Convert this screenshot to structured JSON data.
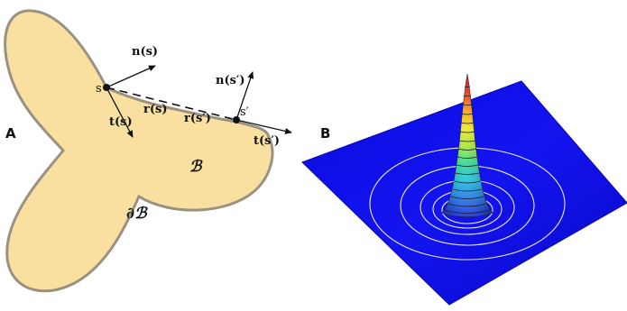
{
  "panels": {
    "a": {
      "letter": "A",
      "labels": {
        "region": "ℬ",
        "boundary": "∂ℬ",
        "point_s": "s",
        "point_s_prime": "s′",
        "normal_s": "n(s)",
        "normal_s_prime": "n(s′)",
        "tangent_s": "t(s)",
        "tangent_s_prime": "t(s′)",
        "position_s": "r(s)",
        "position_s_prime": "r(s′)"
      },
      "colors": {
        "region_fill": "#fae0a0",
        "boundary_stroke": "#9a9280"
      }
    },
    "b": {
      "letter": "B",
      "colors": {
        "surface": "#1010ee",
        "contours": "#e8e8ff"
      }
    }
  }
}
